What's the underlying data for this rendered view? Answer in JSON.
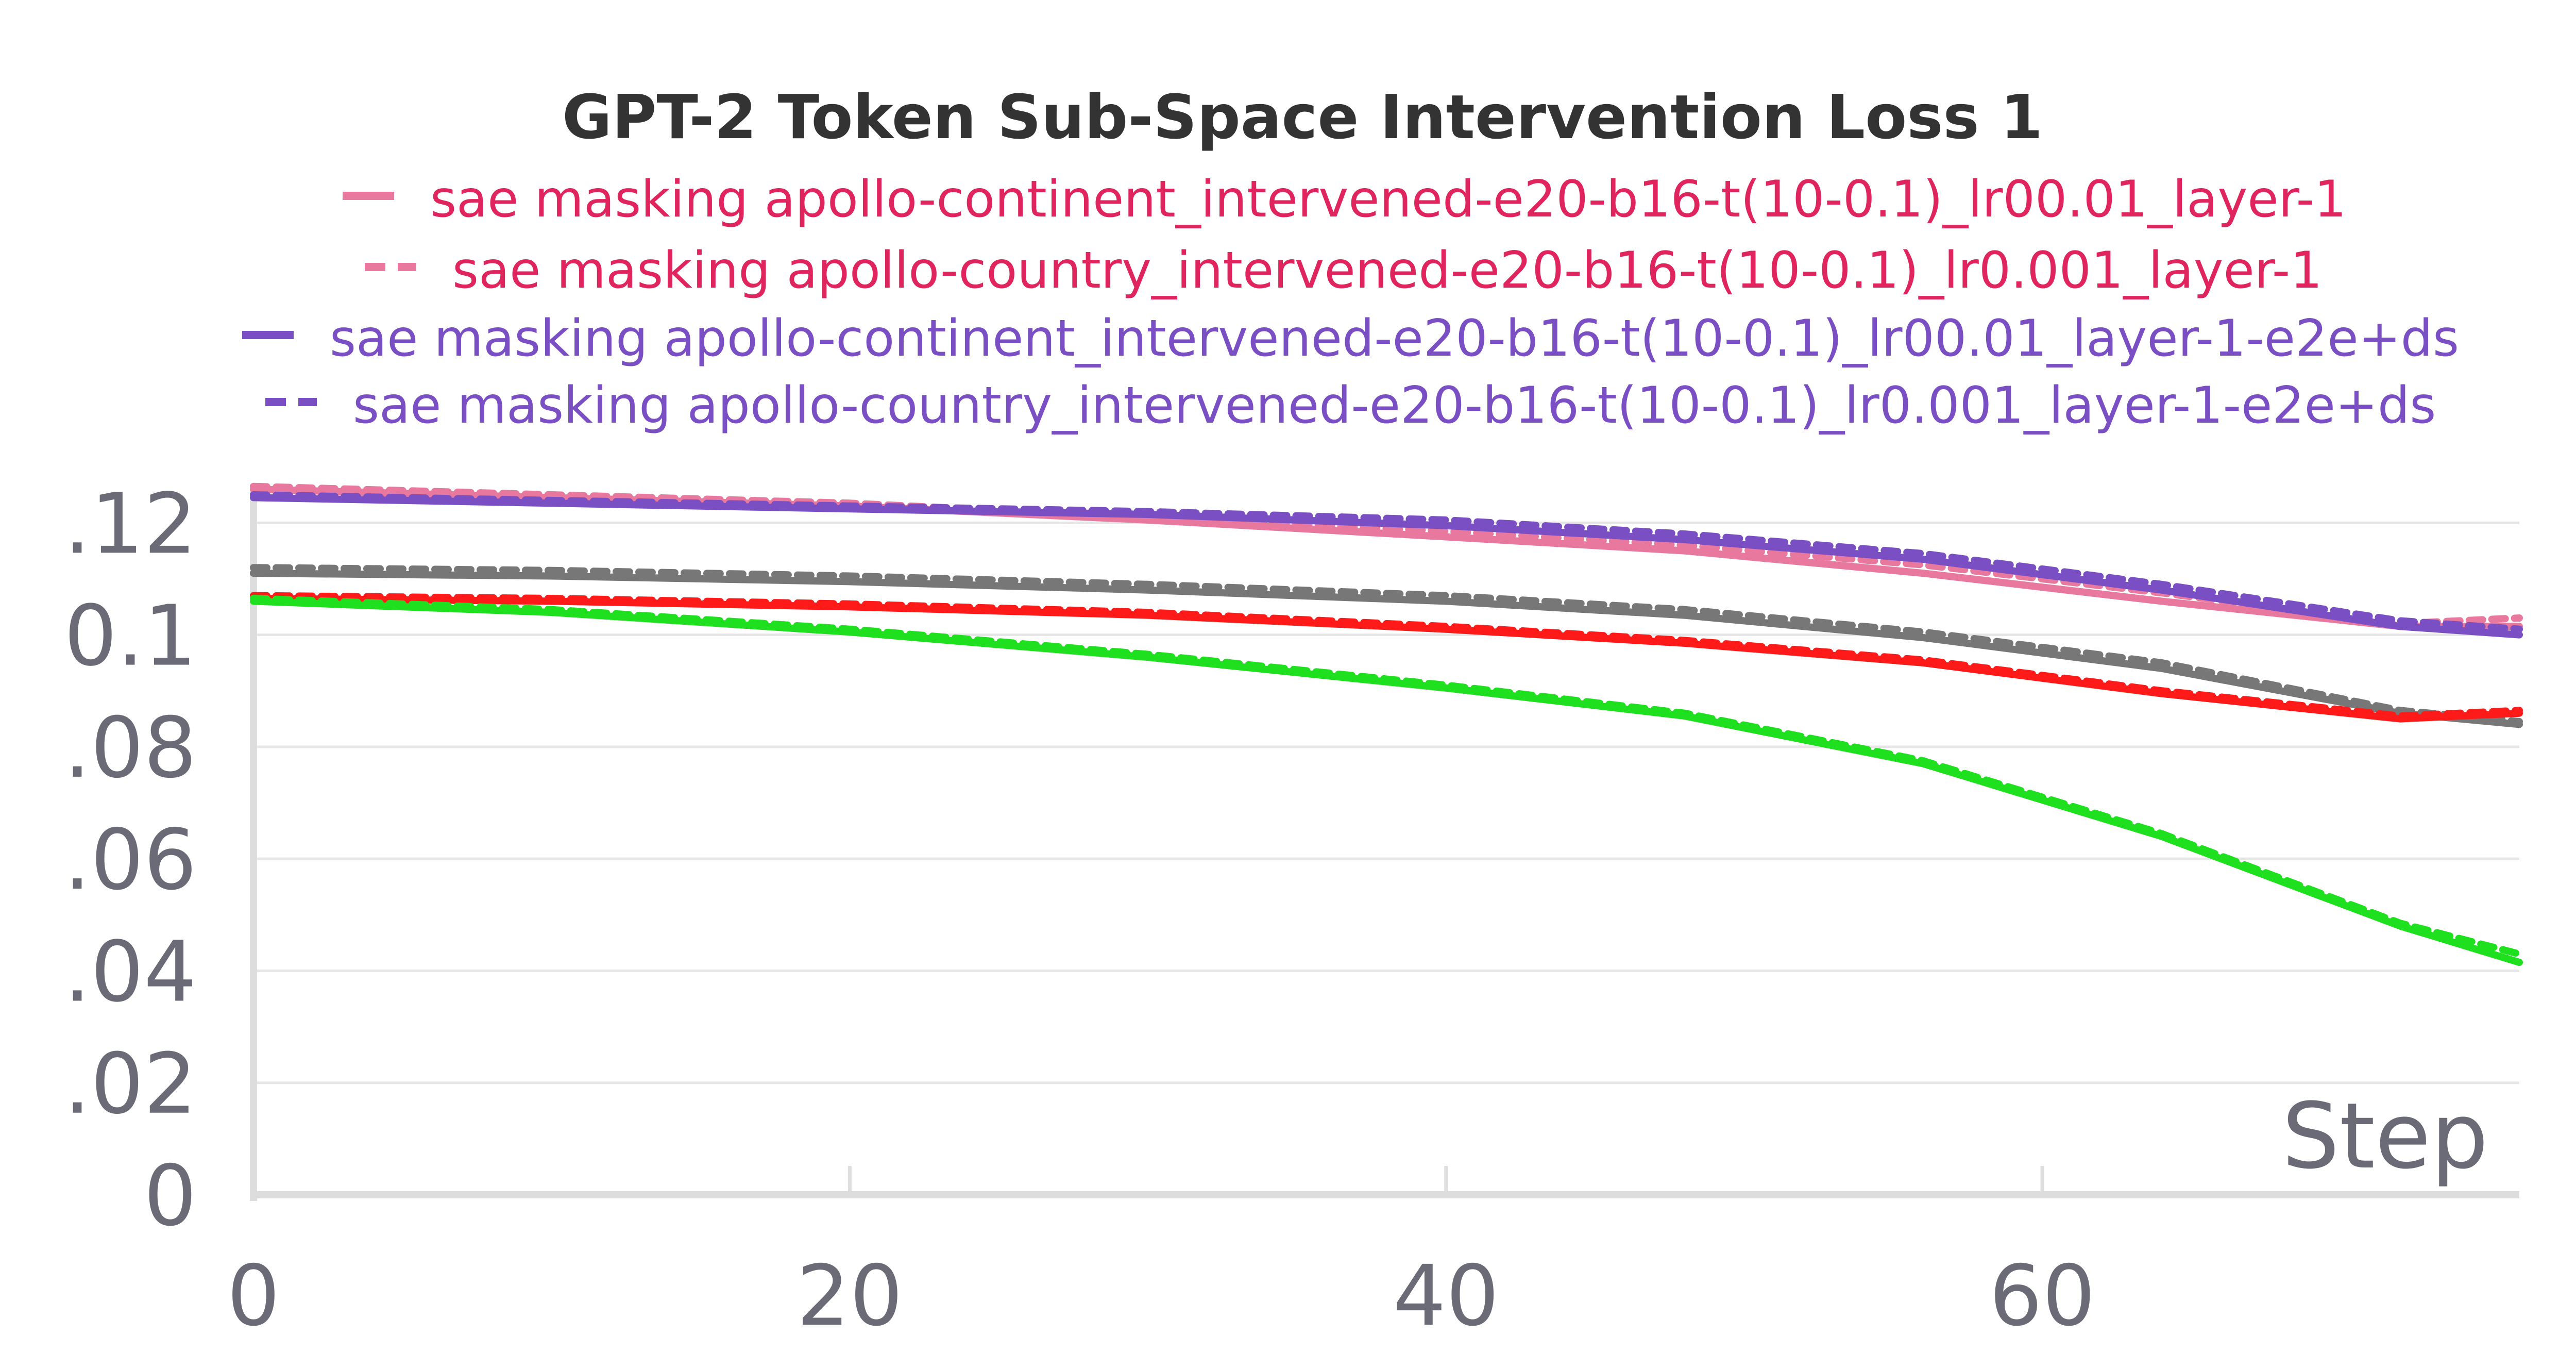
{
  "chart_data": {
    "type": "line",
    "title": "GPT-2 Token Sub-Space Intervention Loss 1",
    "xlabel": "Step",
    "ylabel": "",
    "xlim": [
      0,
      76
    ],
    "ylim": [
      0,
      0.125
    ],
    "grid": true,
    "legend_position": "top",
    "x_ticks": [
      0,
      20,
      40,
      60
    ],
    "x_tick_labels": [
      "0",
      "20",
      "40",
      "60"
    ],
    "y_ticks": [
      0,
      0.02,
      0.04,
      0.06,
      0.08,
      0.1,
      0.12
    ],
    "y_tick_labels": [
      "0",
      ".02",
      ".04",
      ".06",
      ".08",
      "0.1",
      ".12"
    ],
    "series": [
      {
        "name": "sae masking apollo-continent_intervened-e20-b16-t(10-0.1)_lr00.01_layer-1",
        "color": "#e8789d",
        "legend_color": "#e0245e",
        "dash": "solid",
        "in_legend": true,
        "x": [
          0,
          10,
          20,
          30,
          40,
          48,
          56,
          64,
          72,
          76
        ],
        "y": [
          0.126,
          0.1245,
          0.123,
          0.1205,
          0.1175,
          0.115,
          0.111,
          0.106,
          0.1015,
          0.1015
        ]
      },
      {
        "name": "sae masking apollo-country_intervened-e20-b16-t(10-0.1)_lr0.001_layer-1",
        "color": "#e8789d",
        "legend_color": "#e0245e",
        "dash": "dashed",
        "in_legend": true,
        "x": [
          0,
          10,
          20,
          30,
          40,
          48,
          56,
          64,
          72,
          76
        ],
        "y": [
          0.1265,
          0.125,
          0.1235,
          0.121,
          0.1185,
          0.116,
          0.1125,
          0.1075,
          0.102,
          0.103
        ]
      },
      {
        "name": "sae masking apollo-continent_intervened-e20-b16-t(10-0.1)_lr00.01_layer-1-e2e+ds",
        "color": "#7a4fc4",
        "legend_color": "#7a4fc4",
        "dash": "solid",
        "in_legend": true,
        "x": [
          0,
          10,
          20,
          30,
          40,
          48,
          56,
          64,
          72,
          76
        ],
        "y": [
          0.1245,
          0.1235,
          0.1225,
          0.1215,
          0.1195,
          0.117,
          0.1135,
          0.108,
          0.1015,
          0.1
        ]
      },
      {
        "name": "sae masking apollo-country_intervened-e20-b16-t(10-0.1)_lr0.001_layer-1-e2e+ds",
        "color": "#7a4fc4",
        "legend_color": "#7a4fc4",
        "dash": "dashed",
        "in_legend": true,
        "x": [
          0,
          10,
          20,
          30,
          40,
          48,
          56,
          64,
          72,
          76
        ],
        "y": [
          0.125,
          0.124,
          0.123,
          0.122,
          0.1205,
          0.118,
          0.1145,
          0.109,
          0.1025,
          0.101
        ]
      },
      {
        "color": "#777777",
        "dash": "solid",
        "in_legend": false,
        "x": [
          0,
          10,
          20,
          30,
          40,
          48,
          56,
          64,
          72,
          76
        ],
        "y": [
          0.111,
          0.1105,
          0.1095,
          0.108,
          0.106,
          0.1035,
          0.0995,
          0.094,
          0.086,
          0.084
        ]
      },
      {
        "color": "#777777",
        "dash": "dashed",
        "in_legend": false,
        "x": [
          0,
          10,
          20,
          30,
          40,
          48,
          56,
          64,
          72,
          76
        ],
        "y": [
          0.112,
          0.1115,
          0.1105,
          0.109,
          0.107,
          0.1045,
          0.1005,
          0.095,
          0.0865,
          0.0845
        ]
      },
      {
        "color": "#ff1a1a",
        "dash": "solid",
        "in_legend": false,
        "x": [
          0,
          10,
          20,
          30,
          40,
          48,
          56,
          64,
          72,
          76
        ],
        "y": [
          0.1065,
          0.106,
          0.105,
          0.1035,
          0.101,
          0.0985,
          0.095,
          0.0895,
          0.085,
          0.086
        ]
      },
      {
        "color": "#ff1a1a",
        "dash": "dashed",
        "in_legend": false,
        "x": [
          0,
          10,
          20,
          30,
          40,
          48,
          56,
          64,
          72,
          76
        ],
        "y": [
          0.107,
          0.1065,
          0.1055,
          0.104,
          0.1015,
          0.099,
          0.0955,
          0.09,
          0.0855,
          0.0865
        ]
      },
      {
        "color": "#1ee01e",
        "dash": "solid",
        "in_legend": false,
        "x": [
          0,
          10,
          20,
          30,
          40,
          48,
          56,
          64,
          72,
          76
        ],
        "y": [
          0.106,
          0.104,
          0.1005,
          0.096,
          0.0905,
          0.0855,
          0.077,
          0.064,
          0.048,
          0.0415
        ]
      },
      {
        "color": "#1ee01e",
        "dash": "dashed",
        "in_legend": false,
        "x": [
          0,
          10,
          20,
          30,
          40,
          48,
          56,
          64,
          72,
          76
        ],
        "y": [
          0.1065,
          0.1045,
          0.101,
          0.0965,
          0.091,
          0.086,
          0.0775,
          0.0645,
          0.0485,
          0.043
        ]
      }
    ]
  }
}
